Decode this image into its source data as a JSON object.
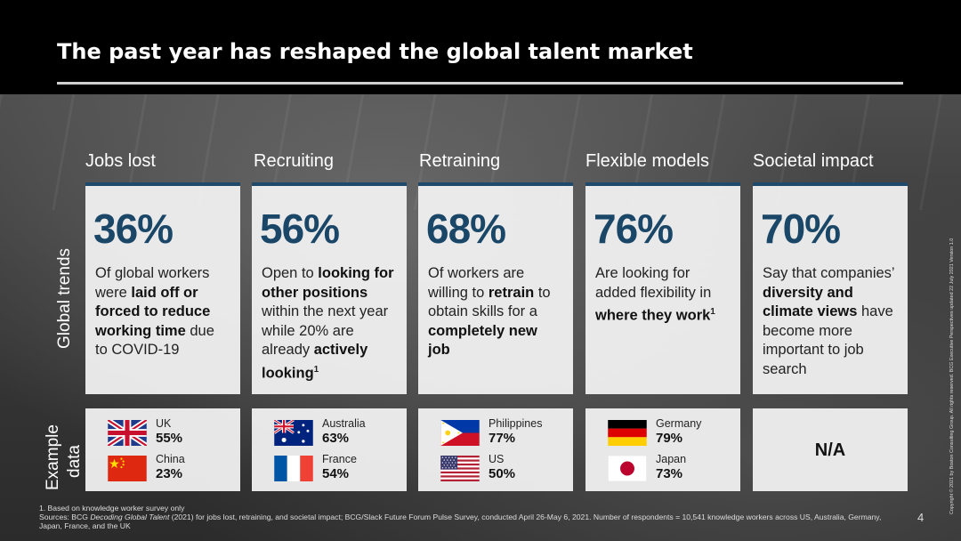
{
  "title": "The past year has reshaped the global talent market",
  "row_labels": {
    "global_trends": "Global trends",
    "example_line1": "Example",
    "example_line2": "data"
  },
  "columns": [
    {
      "heading": "Jobs lost",
      "pct": "36%",
      "desc": [
        {
          "t": "Of global workers were "
        },
        {
          "t": "laid off or forced to reduce working time",
          "b": true
        },
        {
          "t": " due to COVID-19"
        }
      ]
    },
    {
      "heading": "Recruiting",
      "pct": "56%",
      "desc": [
        {
          "t": "Open to "
        },
        {
          "t": "looking for other positions",
          "b": true
        },
        {
          "t": " within the next year while 20% are already "
        },
        {
          "t": "actively looking",
          "b": true
        },
        {
          "t": "1",
          "sup": true,
          "b": true
        }
      ]
    },
    {
      "heading": "Retraining",
      "pct": "68%",
      "desc": [
        {
          "t": "Of workers are willing to "
        },
        {
          "t": "retrain",
          "b": true
        },
        {
          "t": " to obtain skills for a "
        },
        {
          "t": "completely new job",
          "b": true
        }
      ]
    },
    {
      "heading": "Flexible models",
      "pct": "76%",
      "desc": [
        {
          "t": "Are looking for added flexibility in "
        },
        {
          "t": "where they work",
          "b": true
        },
        {
          "t": "1",
          "sup": true,
          "b": true
        }
      ]
    },
    {
      "heading": "Societal impact",
      "pct": "70%",
      "desc": [
        {
          "t": "Say that companies’ "
        },
        {
          "t": "diversity and climate views",
          "b": true
        },
        {
          "t": " have become more important to job search"
        }
      ]
    }
  ],
  "examples": [
    [
      {
        "country": "UK",
        "value": "55%",
        "flag": "uk-flag"
      },
      {
        "country": "China",
        "value": "23%",
        "flag": "china-flag"
      }
    ],
    [
      {
        "country": "Australia",
        "value": "63%",
        "flag": "australia-flag"
      },
      {
        "country": "France",
        "value": "54%",
        "flag": "france-flag"
      }
    ],
    [
      {
        "country": "Philippines",
        "value": "77%",
        "flag": "philippines-flag"
      },
      {
        "country": "US",
        "value": "50%",
        "flag": "us-flag"
      }
    ],
    [
      {
        "country": "Germany",
        "value": "79%",
        "flag": "germany-flag"
      },
      {
        "country": "Japan",
        "value": "73%",
        "flag": "japan-flag"
      }
    ]
  ],
  "na_label": "N/A",
  "footnote": "1. Based on knowledge worker survey only",
  "sources_prefix": "Sources: BCG ",
  "sources_italic": "Decoding Global Talent",
  "sources_rest": " (2021) for jobs lost, retraining, and societal impact; BCG/Slack Future Forum Pulse Survey, conducted April 26-May 6, 2021. Number of respondents = 10,541 knowledge workers across US, Australia, Germany, Japan, France, and the UK",
  "page_number": "4",
  "copyright": "Copyright © 2021 by Boston Consulting Group. All rights reserved. BCG Executive Perspectives updated 22 July 2021 Version 1.0",
  "colors": {
    "accent": "#1a4667",
    "card": "#f2f2f2",
    "header": "#000000"
  }
}
